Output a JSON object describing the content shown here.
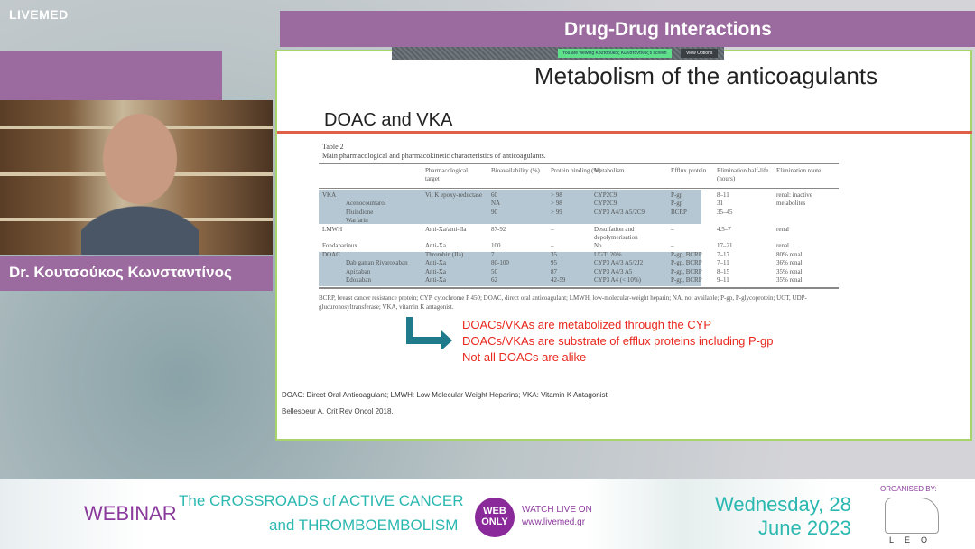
{
  "brand": "LIVEMED",
  "section_title": "Drug-Drug Interactions",
  "share": {
    "message": "You are viewing Κουτσούκος Κωνσταντίνος's screen",
    "view_options": "View Options"
  },
  "speaker": {
    "name": "Dr. Κουτσούκος Κωνσταντίνος"
  },
  "slide": {
    "title": "Metabolism of the anticoagulants",
    "subtitle": "DOAC and VKA",
    "table_label": "Table 2",
    "table_caption": "Main pharmacological and pharmacokinetic characteristics of anticoagulants.",
    "headers": [
      "",
      "Pharmacological target",
      "Bioavailability (%)",
      "Protein binding (%)",
      "Metabolism",
      "Efflux protein",
      "Elimination half-life (hours)",
      "Elimination route"
    ],
    "rows": [
      [
        "VKA",
        "Vit K epoxy-reductase",
        "60",
        "> 98",
        "CYP2C9",
        "P-gp",
        "8–11",
        "renal: inactive"
      ],
      [
        "Acenocoumarol",
        "",
        "NA",
        "> 98",
        "CYP2C9",
        "P-gp",
        "31",
        "metabolites"
      ],
      [
        "Fluindione",
        "",
        "90",
        "> 99",
        "CYP3 A4/3 A5/2C9",
        "BCRP",
        "35–45",
        ""
      ],
      [
        "Warfarin",
        "",
        "",
        "",
        "",
        "",
        "",
        ""
      ],
      [
        "LMWH",
        "Anti-Xa/anti-IIa",
        "87-92",
        "–",
        "Desulfation and",
        "–",
        "4.5–7",
        "renal"
      ],
      [
        "",
        "",
        "",
        "",
        "depolymerisation",
        "",
        "",
        ""
      ],
      [
        "Fondaparinux",
        "Anti-Xa",
        "100",
        "–",
        "No",
        "–",
        "17–21",
        "renal"
      ],
      [
        "DOAC",
        "Thrombin (IIa)",
        "7",
        "35",
        "UGT: 20%",
        "P-gp, BCRP",
        "7–17",
        "80% renal"
      ],
      [
        "Dabigatran   Rivaroxaban",
        "Anti-Xa",
        "80-100",
        "95",
        "CYP3 A4/3 A5/2J2",
        "P-gp, BCRP",
        "7–11",
        "36% renal"
      ],
      [
        "Apixaban",
        "Anti-Xa",
        "50",
        "87",
        "CYP3 A4/3 A5",
        "P-gp, BCRP",
        "8–15",
        "35% renal"
      ],
      [
        "Edoxaban",
        "Anti-Xa",
        "62",
        "42-59",
        "CYP3 A4 (< 10%)",
        "P-gp, BCRP",
        "9–11",
        "35% renal"
      ]
    ],
    "table_footnote": "BCRP, breast cancer resistance protein; CYP, cytochrome P 450; DOAC, direct oral anticoagulant; LMWH, low-molecular-weight heparin; NA, not available; P-gp, P-glycoprotein; UGT, UDP-glucuronosyltransferase; VKA, vitamin K antagonist.",
    "bullets": [
      "DOACs/VKAs are metabolized through the CYP",
      "DOACs/VKAs are substrate of efflux proteins including P-gp",
      "Not all DOACs are alike"
    ],
    "abbreviations": "DOAC: Direct Oral Anticoagulant; LMWH: Low Molecular Weight Heparins; VKA: Vitamin K Antagonist",
    "reference": "Bellesoeur A. Crit Rev Oncol 2018."
  },
  "footer": {
    "webinar": "WEBINAR",
    "title_line1": "The CROSSROADS of ACTIVE CANCER",
    "title_line2": "and THROMBOEMBOLISM",
    "badge": "WEB ONLY",
    "watch": "WATCH LIVE ON",
    "url": "www.livemed.gr",
    "date_line1": "Wednesday, 28",
    "date_line2": "June 2023",
    "organised": "ORGANISED BY:",
    "sponsor": "LEO"
  },
  "colors": {
    "purple": "#9b6a9e",
    "teal": "#3fc9c0",
    "red": "#e8281e",
    "arrow": "#1f7a8c"
  }
}
